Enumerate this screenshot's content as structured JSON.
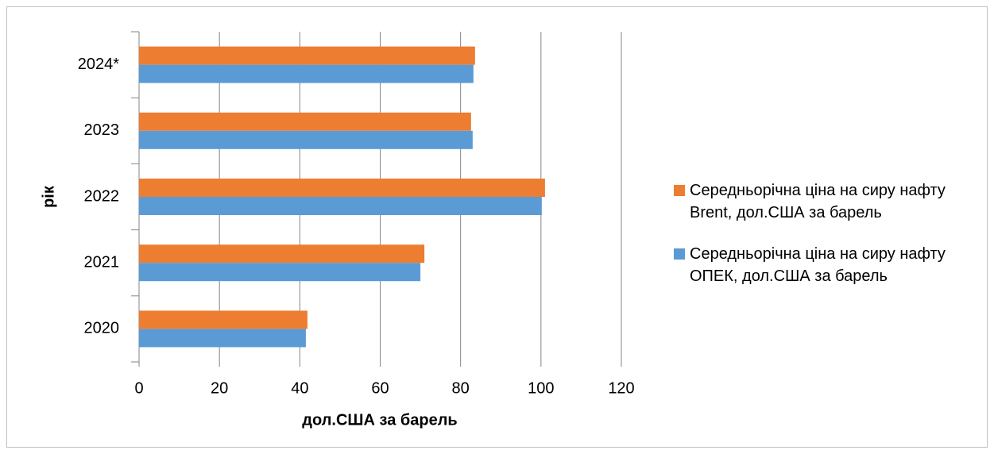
{
  "chart_data": {
    "type": "hbar",
    "categories": [
      "2020",
      "2021",
      "2022",
      "2023",
      "2024*"
    ],
    "series": [
      {
        "name": "Середньорічна ціна на сиру нафту Brent, дол.США за барель",
        "color": "#ed7d31",
        "values": [
          41.9,
          71.0,
          101.0,
          82.6,
          83.6
        ]
      },
      {
        "name": "Середньорічна ціна на сиру нафту ОПЕК, дол.США за барель",
        "color": "#5b9bd5",
        "values": [
          41.5,
          70.0,
          100.2,
          83.0,
          83.2
        ]
      }
    ],
    "xlabel": "дол.США за барель",
    "ylabel": "рік",
    "xlim": [
      0,
      120
    ],
    "xticks": [
      0,
      20,
      40,
      60,
      80,
      100,
      120
    ],
    "grid": true,
    "legend": "right"
  }
}
